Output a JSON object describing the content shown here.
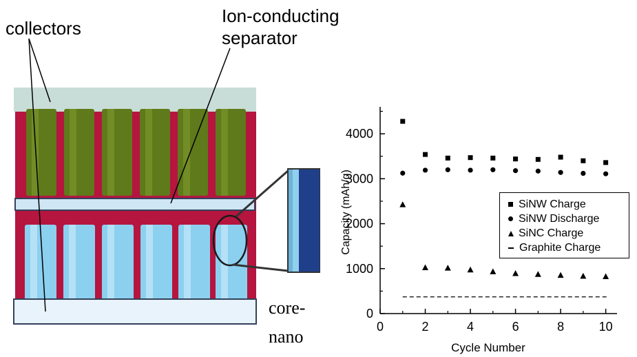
{
  "diagram": {
    "label_collectors": "collectors",
    "label_separator_line1": "Ion-conducting",
    "label_separator_line2": "separator",
    "label_core_1": "core-",
    "label_core_2": "nano",
    "colors": {
      "collector_top": "#c9ddd8",
      "collector_bottom": "#e8f3fb",
      "electrolyte": "#b5153f",
      "anode_rods": "#5f7a1a",
      "cathode_rods": "#8cd0f0",
      "separator": "#cfe6f4",
      "inset_dark": "#1f3f8a"
    }
  },
  "chart_data": {
    "type": "scatter",
    "xlabel": "Cycle Number",
    "ylabel": "Capacity (mAh/g)",
    "xlim": [
      0,
      10.5
    ],
    "ylim": [
      0,
      4600
    ],
    "xticks": [
      0,
      2,
      4,
      6,
      8,
      10
    ],
    "yticks": [
      0,
      1000,
      2000,
      3000,
      4000
    ],
    "minor_xticks": [
      1,
      3,
      5,
      7,
      9
    ],
    "minor_yticks": [
      500,
      1500,
      2500,
      3500,
      4500
    ],
    "legend_position": "right",
    "series": [
      {
        "name": "SiNW Charge",
        "marker": "square",
        "x": [
          1,
          2,
          3,
          4,
          5,
          6,
          7,
          8,
          9,
          10
        ],
        "y": [
          4277,
          3540,
          3460,
          3470,
          3460,
          3440,
          3430,
          3480,
          3400,
          3360
        ]
      },
      {
        "name": "SiNW Discharge",
        "marker": "circle",
        "x": [
          1,
          2,
          3,
          4,
          5,
          6,
          7,
          8,
          9,
          10
        ],
        "y": [
          3124,
          3190,
          3200,
          3190,
          3200,
          3180,
          3170,
          3140,
          3120,
          3110
        ]
      },
      {
        "name": "SiNC Charge",
        "marker": "triangle",
        "x": [
          1,
          2,
          3,
          4,
          5,
          6,
          7,
          8,
          9,
          10
        ],
        "y": [
          2420,
          1020,
          1010,
          970,
          930,
          890,
          870,
          850,
          830,
          820
        ]
      },
      {
        "name": "Graphite Charge",
        "marker": "dash",
        "x": [
          1,
          10.05
        ],
        "y": [
          372,
          372
        ]
      }
    ]
  }
}
